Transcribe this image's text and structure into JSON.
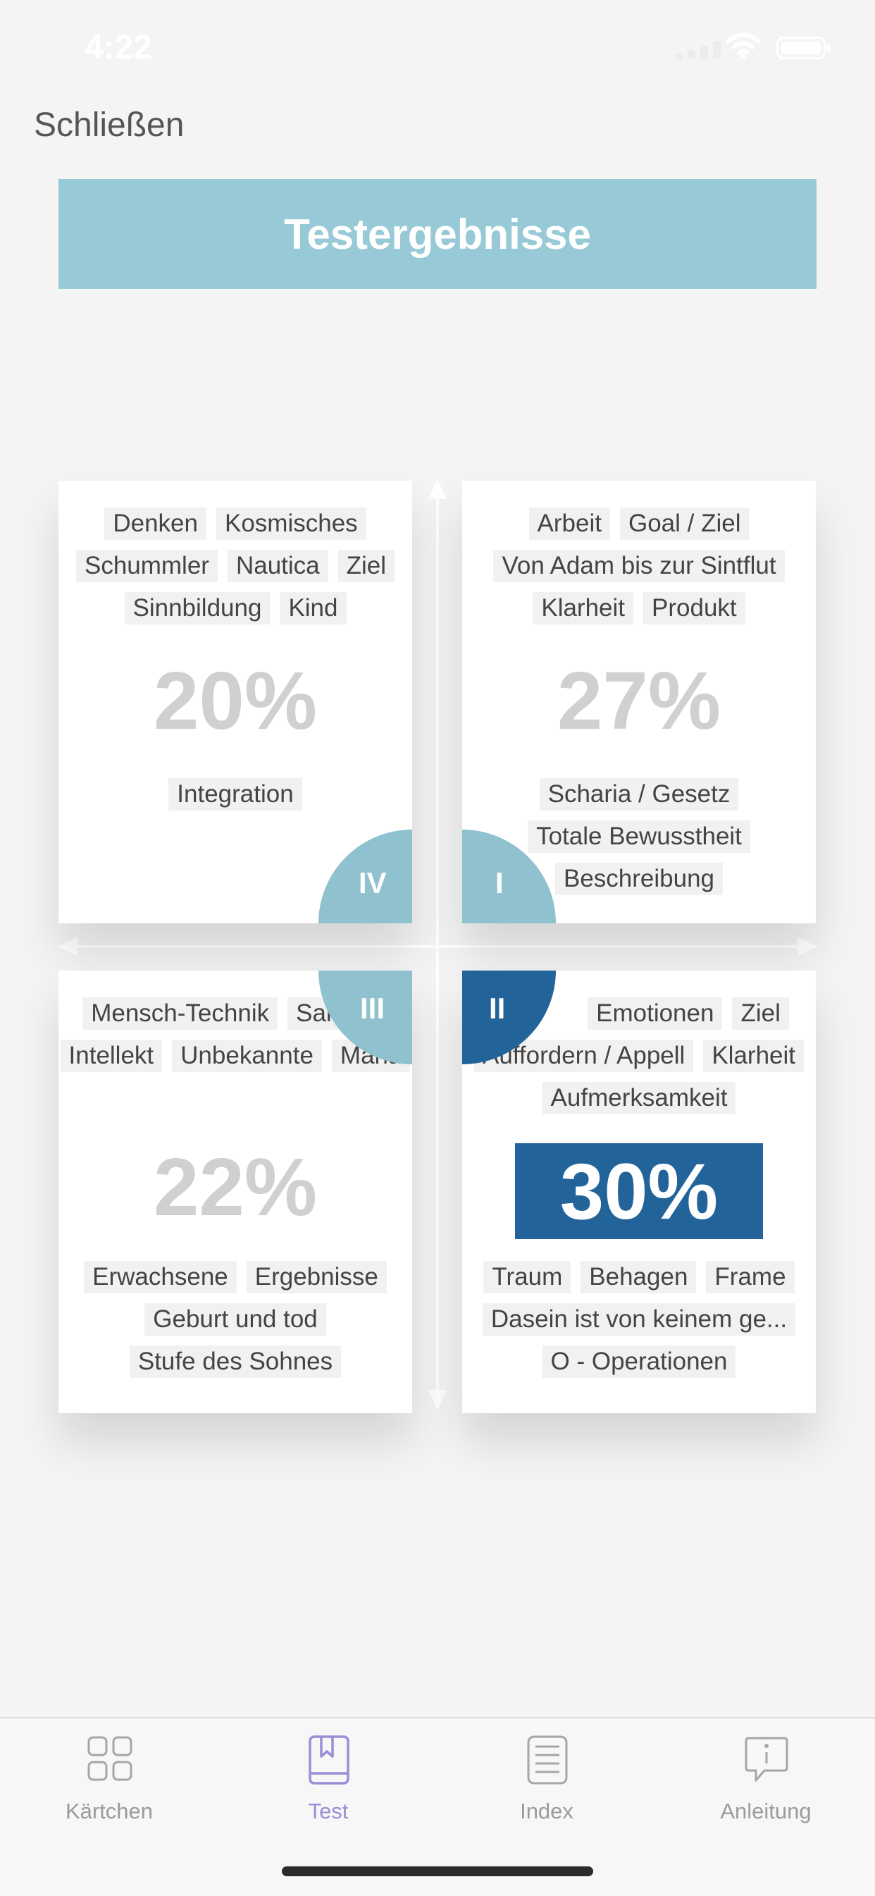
{
  "status": {
    "time": "4:22"
  },
  "nav": {
    "close_label": "Schließen"
  },
  "header": {
    "title": "Testergebnisse"
  },
  "quadrants": {
    "iv": {
      "label": "IV",
      "percent": "20%",
      "top_tags": [
        "Denken",
        "Kosmisches",
        "Schummler",
        "Nautica",
        "Ziel",
        "Sinnbildung",
        "Kind"
      ],
      "bottom_tags": [
        "Integration"
      ]
    },
    "i": {
      "label": "I",
      "percent": "27%",
      "top_tags": [
        "Arbeit",
        "Goal / Ziel",
        "Von Adam bis zur Sintflut",
        "Klarheit",
        "Produkt"
      ],
      "bottom_tags": [
        "Scharia / Gesetz",
        "Totale Bewusstheit",
        "Beschreibung"
      ]
    },
    "iii": {
      "label": "III",
      "percent": "22%",
      "top_tags": [
        "Mensch-Technik",
        "Sakrale",
        "Intellekt",
        "Unbekannte",
        "Maria"
      ],
      "bottom_tags": [
        "Erwachsene",
        "Ergebnisse",
        "Geburt und tod",
        "Stufe des Sohnes"
      ]
    },
    "ii": {
      "label": "II",
      "percent": "30%",
      "highlighted": true,
      "top_tags": [
        "Emotionen",
        "Ziel",
        "Auffordern / Appell",
        "Klarheit",
        "Aufmerksamkeit"
      ],
      "bottom_tags": [
        "Traum",
        "Behagen",
        "Frame",
        "Dasein ist von keinem ge...",
        "O - Operationen"
      ]
    }
  },
  "colors": {
    "banner": "#97cad6",
    "quadrant_circle": "#8fc1cf",
    "highlight": "#22639a",
    "tab_active": "#9b8ed6",
    "tab_inactive": "#a6a6a6"
  },
  "tabbar": {
    "tabs": [
      {
        "label": "Kärtchen",
        "icon": "grid-icon",
        "active": false
      },
      {
        "label": "Test",
        "icon": "book-icon",
        "active": true
      },
      {
        "label": "Index",
        "icon": "list-icon",
        "active": false
      },
      {
        "label": "Anleitung",
        "icon": "info-bubble-icon",
        "active": false
      }
    ]
  }
}
